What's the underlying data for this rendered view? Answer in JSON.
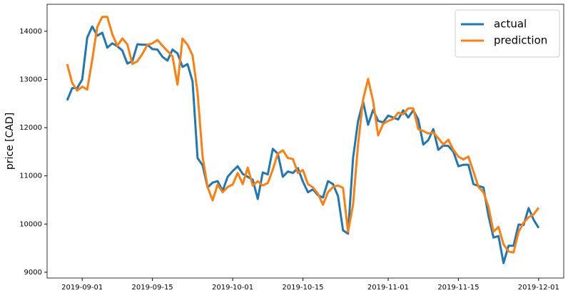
{
  "chart_data": {
    "type": "line",
    "ylabel": "price [CAD]",
    "x": [
      "2019-08-29",
      "2019-08-30",
      "2019-08-31",
      "2019-09-01",
      "2019-09-02",
      "2019-09-03",
      "2019-09-04",
      "2019-09-05",
      "2019-09-06",
      "2019-09-07",
      "2019-09-08",
      "2019-09-09",
      "2019-09-10",
      "2019-09-11",
      "2019-09-12",
      "2019-09-13",
      "2019-09-14",
      "2019-09-15",
      "2019-09-16",
      "2019-09-17",
      "2019-09-18",
      "2019-09-19",
      "2019-09-20",
      "2019-09-21",
      "2019-09-22",
      "2019-09-23",
      "2019-09-24",
      "2019-09-25",
      "2019-09-26",
      "2019-09-27",
      "2019-09-28",
      "2019-09-29",
      "2019-09-30",
      "2019-10-01",
      "2019-10-02",
      "2019-10-03",
      "2019-10-04",
      "2019-10-05",
      "2019-10-06",
      "2019-10-07",
      "2019-10-08",
      "2019-10-09",
      "2019-10-10",
      "2019-10-11",
      "2019-10-12",
      "2019-10-13",
      "2019-10-14",
      "2019-10-15",
      "2019-10-16",
      "2019-10-17",
      "2019-10-18",
      "2019-10-19",
      "2019-10-20",
      "2019-10-21",
      "2019-10-22",
      "2019-10-23",
      "2019-10-24",
      "2019-10-25",
      "2019-10-26",
      "2019-10-27",
      "2019-10-28",
      "2019-10-29",
      "2019-10-30",
      "2019-10-31",
      "2019-11-01",
      "2019-11-02",
      "2019-11-03",
      "2019-11-04",
      "2019-11-05",
      "2019-11-06",
      "2019-11-07",
      "2019-11-08",
      "2019-11-09",
      "2019-11-10",
      "2019-11-11",
      "2019-11-12",
      "2019-11-13",
      "2019-11-14",
      "2019-11-15",
      "2019-11-16",
      "2019-11-17",
      "2019-11-18",
      "2019-11-19",
      "2019-11-20",
      "2019-11-21",
      "2019-11-22",
      "2019-11-23",
      "2019-11-24",
      "2019-11-25",
      "2019-11-26",
      "2019-11-27",
      "2019-11-28",
      "2019-11-29",
      "2019-11-30",
      "2019-12-01"
    ],
    "series": [
      {
        "name": "actual",
        "color": "#1f77b4",
        "values": [
          12565,
          12820,
          12820,
          13000,
          13870,
          14100,
          13910,
          13970,
          13660,
          13750,
          13690,
          13600,
          13330,
          13380,
          13730,
          13720,
          13720,
          13630,
          13620,
          13470,
          13390,
          13620,
          13540,
          13260,
          13320,
          12960,
          11370,
          11220,
          10760,
          10860,
          10890,
          10690,
          10980,
          11100,
          11200,
          11040,
          10980,
          10920,
          10520,
          11070,
          11030,
          11560,
          11460,
          10980,
          11090,
          11060,
          11160,
          10880,
          10660,
          10720,
          10600,
          10550,
          10890,
          10830,
          10580,
          9870,
          9800,
          11370,
          12140,
          12540,
          12060,
          12370,
          12140,
          12110,
          12250,
          12210,
          12170,
          12360,
          12210,
          12360,
          12170,
          11650,
          11740,
          11970,
          11540,
          11630,
          11620,
          11500,
          11200,
          11230,
          11230,
          10830,
          10790,
          10760,
          10170,
          9720,
          9750,
          9190,
          9550,
          9550,
          9990,
          9980,
          10330,
          10090,
          9920
        ]
      },
      {
        "name": "prediction",
        "color": "#ff7f0e",
        "values": [
          13320,
          12930,
          12770,
          12850,
          12790,
          13410,
          14090,
          14300,
          14300,
          13940,
          13700,
          13850,
          13730,
          13320,
          13380,
          13530,
          13720,
          13750,
          13820,
          13700,
          13590,
          13480,
          12890,
          13850,
          13720,
          13500,
          12730,
          11400,
          10770,
          10490,
          10820,
          10660,
          10770,
          10820,
          11060,
          10830,
          11170,
          10800,
          10890,
          10800,
          10850,
          11130,
          11460,
          11530,
          11370,
          11350,
          11060,
          11120,
          10830,
          10760,
          10630,
          10400,
          10660,
          10770,
          10800,
          10750,
          9840,
          10400,
          11660,
          12580,
          13010,
          12550,
          11840,
          12080,
          12140,
          12180,
          12310,
          12280,
          12400,
          12400,
          11970,
          11930,
          11880,
          11900,
          11780,
          11650,
          11750,
          11540,
          11400,
          11340,
          11400,
          11090,
          10770,
          10660,
          10360,
          9840,
          9940,
          9580,
          9430,
          9410,
          9840,
          10030,
          10140,
          10200,
          10340
        ]
      }
    ],
    "xlim": [
      "2019-08-25",
      "2019-12-06"
    ],
    "xticks": [
      "2019-09-01",
      "2019-09-15",
      "2019-10-01",
      "2019-10-15",
      "2019-11-01",
      "2019-11-15",
      "2019-12-01"
    ],
    "ylim": [
      8880,
      14560
    ],
    "yticks": [
      9000,
      10000,
      11000,
      12000,
      13000,
      14000
    ],
    "legend": "upper right"
  }
}
